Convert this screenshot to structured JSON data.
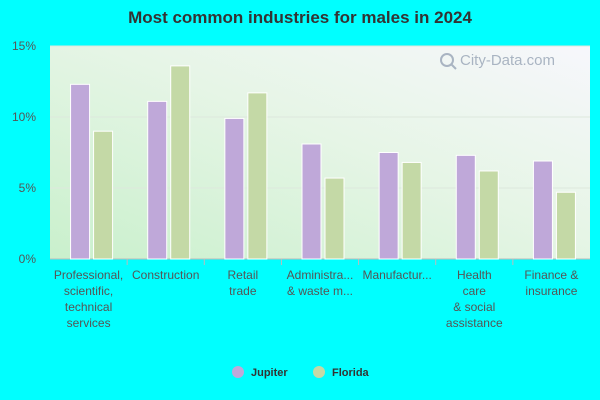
{
  "chart_data": {
    "type": "bar",
    "title": "Most common industries for males in 2024",
    "categories": [
      [
        "Professional,",
        "scientific,",
        "technical",
        "services"
      ],
      [
        "Construction"
      ],
      [
        "Retail",
        "trade"
      ],
      [
        "Administra...",
        "& waste m..."
      ],
      [
        "Manufactur..."
      ],
      [
        "Health",
        "care",
        "& social",
        "assistance"
      ],
      [
        "Finance &",
        "insurance"
      ]
    ],
    "series": [
      {
        "name": "Jupiter",
        "color": "#bfa8d9",
        "values": [
          12.3,
          11.1,
          9.9,
          8.1,
          7.5,
          7.3,
          6.9
        ]
      },
      {
        "name": "Florida",
        "color": "#c4d9a6",
        "values": [
          9.0,
          13.6,
          11.7,
          5.7,
          6.8,
          6.2,
          4.7
        ]
      }
    ],
    "y_ticks": [
      "0%",
      "5%",
      "10%",
      "15%"
    ],
    "ylim": [
      0,
      15
    ],
    "grid": true,
    "legend_position": "bottom",
    "watermark": "City-Data.com"
  }
}
